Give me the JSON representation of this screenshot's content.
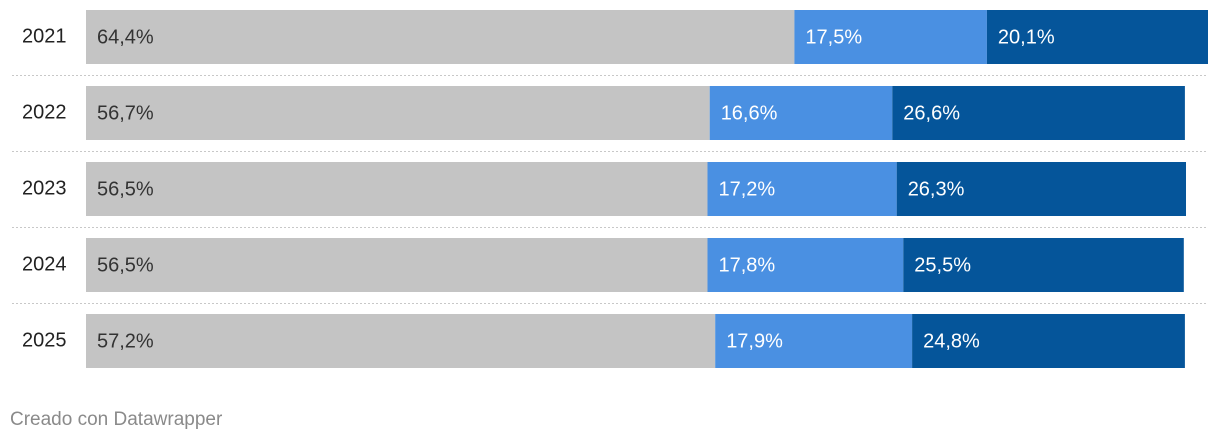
{
  "chart_data": {
    "type": "bar",
    "stacked": true,
    "categories": [
      "2021",
      "2022",
      "2023",
      "2024",
      "2025"
    ],
    "series": [
      {
        "color": "#c4c4c4",
        "label_color": "#333333",
        "values": [
          64.4,
          56.7,
          56.5,
          56.5,
          57.2
        ],
        "value_labels": [
          "64,4%",
          "56,7%",
          "56,5%",
          "56,5%",
          "57,2%"
        ]
      },
      {
        "color": "#4a90e2",
        "label_color": "#ffffff",
        "values": [
          17.5,
          16.6,
          17.2,
          17.8,
          17.9
        ],
        "value_labels": [
          "17,5%",
          "16,6%",
          "17,2%",
          "17,8%",
          "17,9%"
        ]
      },
      {
        "color": "#05559a",
        "label_color": "#ffffff",
        "values": [
          20.1,
          26.6,
          26.3,
          25.5,
          24.8
        ],
        "value_labels": [
          "20,1%",
          "26,6%",
          "26,3%",
          "25,5%",
          "24,8%"
        ]
      }
    ],
    "credit": "Creado con Datawrapper"
  }
}
